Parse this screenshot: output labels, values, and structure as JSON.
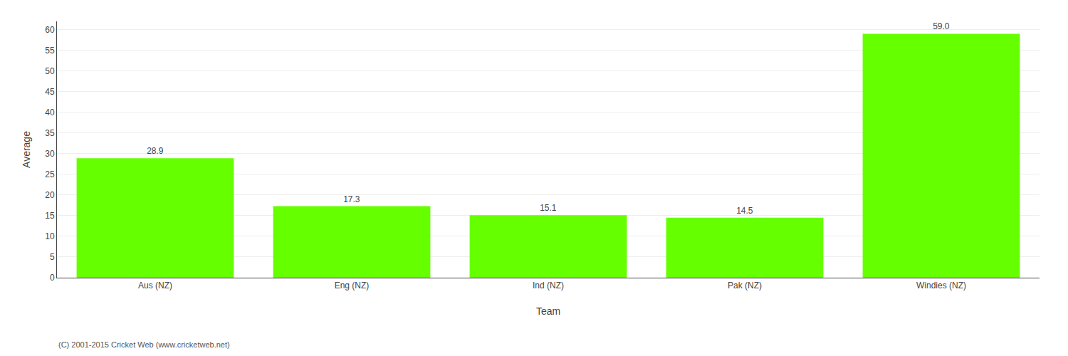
{
  "chart_data": {
    "type": "bar",
    "categories": [
      "Aus (NZ)",
      "Eng (NZ)",
      "Ind (NZ)",
      "Pak (NZ)",
      "Windies (NZ)"
    ],
    "values": [
      28.9,
      17.3,
      15.1,
      14.5,
      59.0
    ],
    "value_labels": [
      "28.9",
      "17.3",
      "15.1",
      "14.5",
      "59.0"
    ],
    "data_labels": true,
    "color": "#66ff00",
    "xlabel": "Team",
    "ylabel": "Average",
    "ylim": [
      0,
      62
    ],
    "yticks": [
      0,
      5,
      10,
      15,
      20,
      25,
      30,
      35,
      40,
      45,
      50,
      55,
      60
    ],
    "grid": true,
    "annotations": [
      "(C) 2001-2015 Cricket Web (www.cricketweb.net)"
    ]
  }
}
